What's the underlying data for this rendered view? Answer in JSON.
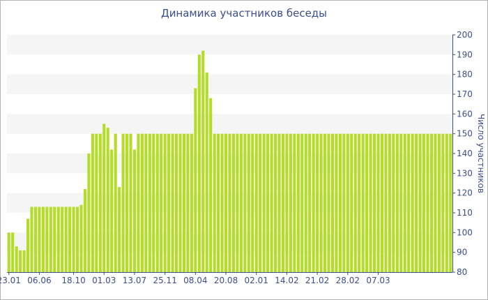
{
  "chart_data": {
    "type": "bar",
    "title": "Динамика участников беседы",
    "ylabel": "Число участников",
    "xlabel": "",
    "ylim": [
      80,
      200
    ],
    "y_ticks": [
      80,
      90,
      100,
      110,
      120,
      130,
      140,
      150,
      160,
      170,
      180,
      190,
      200
    ],
    "x_tick_labels": [
      "23.01",
      "06.06",
      "18.10",
      "01.03",
      "13.07",
      "25.11",
      "08.04",
      "20.08",
      "02.01",
      "14.02",
      "21.02",
      "28.02",
      "07.03"
    ],
    "x_tick_bar_index": [
      0,
      8,
      17,
      25,
      33,
      41,
      49,
      57,
      65,
      73,
      81,
      89,
      97
    ],
    "grid": "horizontal bands",
    "legend": "none",
    "bar_color": "#b3dd27",
    "band_color": "#f5f5f5",
    "axis_color": "#3a4e8c",
    "values": [
      100,
      100,
      93,
      91,
      91,
      107,
      113,
      113,
      113,
      113,
      113,
      113,
      113,
      113,
      113,
      113,
      113,
      113,
      113,
      114,
      122,
      140,
      150,
      150,
      150,
      155,
      153,
      142,
      150,
      123,
      150,
      150,
      150,
      142,
      150,
      150,
      150,
      150,
      150,
      150,
      150,
      150,
      150,
      150,
      150,
      150,
      150,
      150,
      150,
      173,
      190,
      192,
      181,
      168,
      150,
      150,
      150,
      150,
      150,
      150,
      150,
      150,
      150,
      150,
      150,
      150,
      150,
      150,
      150,
      150,
      150,
      150,
      150,
      150,
      150,
      150,
      150,
      150,
      150,
      150,
      150,
      150,
      150,
      150,
      150,
      150,
      150,
      150,
      150,
      150,
      150,
      150,
      150,
      150,
      150,
      150,
      150,
      150,
      150,
      150,
      150,
      150,
      150,
      150,
      150,
      150,
      150,
      150,
      150,
      150,
      150,
      150,
      150,
      150,
      150,
      150,
      150
    ]
  }
}
